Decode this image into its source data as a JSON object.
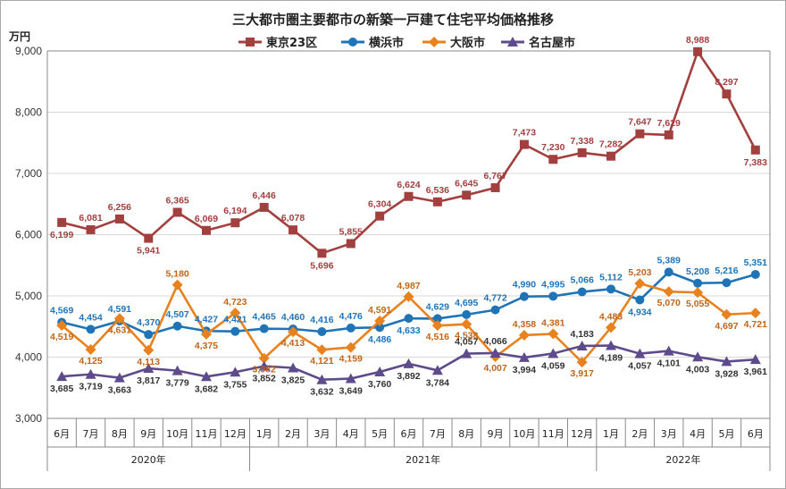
{
  "chart_data": {
    "type": "line",
    "title": "三大都市圏主要都市の新築一戸建て住宅平均価格推移",
    "unit_label": "万円",
    "ylim": [
      3000,
      9000
    ],
    "yticks": [
      "3,000",
      "4,000",
      "5,000",
      "6,000",
      "7,000",
      "8,000",
      "9,000"
    ],
    "ytick_values": [
      3000,
      4000,
      5000,
      6000,
      7000,
      8000,
      9000
    ],
    "grid": true,
    "legend_position": "top",
    "categories": [
      "6月",
      "7月",
      "8月",
      "9月",
      "10月",
      "11月",
      "12月",
      "1月",
      "2月",
      "3月",
      "4月",
      "5月",
      "6月",
      "7月",
      "8月",
      "9月",
      "10月",
      "11月",
      "12月",
      "1月",
      "2月",
      "3月",
      "4月",
      "5月",
      "6月"
    ],
    "years": [
      {
        "label": "2020年",
        "start": 0,
        "end": 6
      },
      {
        "label": "2021年",
        "start": 7,
        "end": 18
      },
      {
        "label": "2022年",
        "start": 19,
        "end": 24
      }
    ],
    "series": [
      {
        "name": "東京23区",
        "color": "#a2403f",
        "marker": "square",
        "values": [
          6199,
          6081,
          6256,
          5941,
          6365,
          6069,
          6194,
          6446,
          6078,
          5696,
          5855,
          6304,
          6624,
          6536,
          6645,
          6767,
          7473,
          7230,
          7338,
          7282,
          7647,
          7629,
          8988,
          8297,
          7383
        ],
        "labels": [
          "6,199",
          "6,081",
          "6,256",
          "5,941",
          "6,365",
          "6,069",
          "6,194",
          "6,446",
          "6,078",
          "5,696",
          "5,855",
          "6,304",
          "6,624",
          "6,536",
          "6,645",
          "6,767",
          "7,473",
          "7,230",
          "7,338",
          "7,282",
          "7,647",
          "7,629",
          "8,988",
          "8,297",
          "7,383"
        ]
      },
      {
        "name": "横浜市",
        "color": "#1f74b8",
        "marker": "circle",
        "values": [
          4569,
          4454,
          4591,
          4370,
          4507,
          4427,
          4421,
          4465,
          4460,
          4416,
          4476,
          4486,
          4633,
          4629,
          4695,
          4772,
          4990,
          4995,
          5066,
          5112,
          4934,
          5389,
          5208,
          5216,
          5351
        ],
        "labels": [
          "4,569",
          "4,454",
          "4,591",
          "4,370",
          "4,507",
          "4,427",
          "4,421",
          "4,465",
          "4,460",
          "4,416",
          "4,476",
          "4,486",
          "4,633",
          "4,629",
          "4,695",
          "4,772",
          "4,990",
          "4,995",
          "5,066",
          "5,112",
          "4,934",
          "5,389",
          "5,208",
          "5,216",
          "5,351"
        ]
      },
      {
        "name": "大阪市",
        "color": "#e8821e",
        "marker": "diamond",
        "values": [
          4519,
          4125,
          4631,
          4113,
          5180,
          4375,
          4723,
          3982,
          4413,
          4121,
          4159,
          4591,
          4987,
          4516,
          4538,
          4007,
          4358,
          4381,
          3917,
          4483,
          5203,
          5070,
          5055,
          4697,
          4721
        ],
        "labels": [
          "4,519",
          "4,125",
          "4,631",
          "4,113",
          "5,180",
          "4,375",
          "4,723",
          "3,982",
          "4,413",
          "4,121",
          "4,159",
          "4,591",
          "4,987",
          "4,516",
          "4,538",
          "4,007",
          "4,358",
          "4,381",
          "3,917",
          "4,483",
          "5,203",
          "5,070",
          "5,055",
          "4,697",
          "4,721"
        ]
      },
      {
        "name": "名古屋市",
        "color": "#5e4b8b",
        "marker": "triangle",
        "values": [
          3685,
          3719,
          3663,
          3817,
          3779,
          3682,
          3755,
          3852,
          3825,
          3632,
          3649,
          3760,
          3892,
          3784,
          4057,
          4066,
          3994,
          4059,
          4183,
          4189,
          4057,
          4101,
          4003,
          3928,
          3961
        ],
        "labels": [
          "3,685",
          "3,719",
          "3,663",
          "3,817",
          "3,779",
          "3,682",
          "3,755",
          "3,852",
          "3,825",
          "3,632",
          "3,649",
          "3,760",
          "3,892",
          "3,784",
          "4,057",
          "4,066",
          "3,994",
          "4,059",
          "4,183",
          "4,189",
          "4,057",
          "4,101",
          "4,003",
          "3,928",
          "3,961"
        ]
      }
    ]
  }
}
